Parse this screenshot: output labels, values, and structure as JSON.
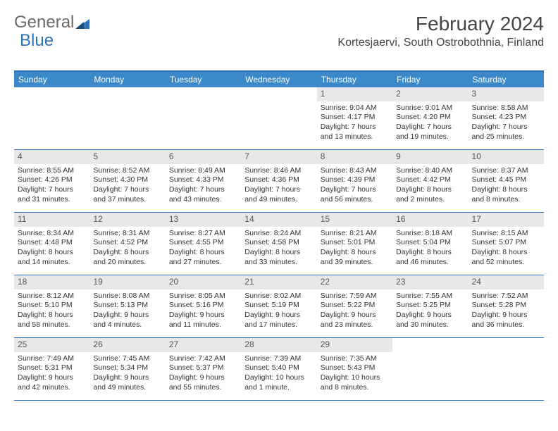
{
  "logo": {
    "text_a": "General",
    "text_b": "Blue"
  },
  "title": "February 2024",
  "location": "Kortesjaervi, South Ostrobothnia, Finland",
  "colors": {
    "header_bg": "#3b89c9",
    "header_text": "#ffffff",
    "border": "#2d72b8",
    "daynum_bg": "#e8e8e8",
    "text": "#333333",
    "logo_gray": "#6a6a6a",
    "logo_blue": "#2d72b8"
  },
  "day_headers": [
    "Sunday",
    "Monday",
    "Tuesday",
    "Wednesday",
    "Thursday",
    "Friday",
    "Saturday"
  ],
  "weeks": [
    [
      {
        "day": "",
        "sunrise": "",
        "sunset": "",
        "daylight": ""
      },
      {
        "day": "",
        "sunrise": "",
        "sunset": "",
        "daylight": ""
      },
      {
        "day": "",
        "sunrise": "",
        "sunset": "",
        "daylight": ""
      },
      {
        "day": "",
        "sunrise": "",
        "sunset": "",
        "daylight": ""
      },
      {
        "day": "1",
        "sunrise": "Sunrise: 9:04 AM",
        "sunset": "Sunset: 4:17 PM",
        "daylight": "Daylight: 7 hours and 13 minutes."
      },
      {
        "day": "2",
        "sunrise": "Sunrise: 9:01 AM",
        "sunset": "Sunset: 4:20 PM",
        "daylight": "Daylight: 7 hours and 19 minutes."
      },
      {
        "day": "3",
        "sunrise": "Sunrise: 8:58 AM",
        "sunset": "Sunset: 4:23 PM",
        "daylight": "Daylight: 7 hours and 25 minutes."
      }
    ],
    [
      {
        "day": "4",
        "sunrise": "Sunrise: 8:55 AM",
        "sunset": "Sunset: 4:26 PM",
        "daylight": "Daylight: 7 hours and 31 minutes."
      },
      {
        "day": "5",
        "sunrise": "Sunrise: 8:52 AM",
        "sunset": "Sunset: 4:30 PM",
        "daylight": "Daylight: 7 hours and 37 minutes."
      },
      {
        "day": "6",
        "sunrise": "Sunrise: 8:49 AM",
        "sunset": "Sunset: 4:33 PM",
        "daylight": "Daylight: 7 hours and 43 minutes."
      },
      {
        "day": "7",
        "sunrise": "Sunrise: 8:46 AM",
        "sunset": "Sunset: 4:36 PM",
        "daylight": "Daylight: 7 hours and 49 minutes."
      },
      {
        "day": "8",
        "sunrise": "Sunrise: 8:43 AM",
        "sunset": "Sunset: 4:39 PM",
        "daylight": "Daylight: 7 hours and 56 minutes."
      },
      {
        "day": "9",
        "sunrise": "Sunrise: 8:40 AM",
        "sunset": "Sunset: 4:42 PM",
        "daylight": "Daylight: 8 hours and 2 minutes."
      },
      {
        "day": "10",
        "sunrise": "Sunrise: 8:37 AM",
        "sunset": "Sunset: 4:45 PM",
        "daylight": "Daylight: 8 hours and 8 minutes."
      }
    ],
    [
      {
        "day": "11",
        "sunrise": "Sunrise: 8:34 AM",
        "sunset": "Sunset: 4:48 PM",
        "daylight": "Daylight: 8 hours and 14 minutes."
      },
      {
        "day": "12",
        "sunrise": "Sunrise: 8:31 AM",
        "sunset": "Sunset: 4:52 PM",
        "daylight": "Daylight: 8 hours and 20 minutes."
      },
      {
        "day": "13",
        "sunrise": "Sunrise: 8:27 AM",
        "sunset": "Sunset: 4:55 PM",
        "daylight": "Daylight: 8 hours and 27 minutes."
      },
      {
        "day": "14",
        "sunrise": "Sunrise: 8:24 AM",
        "sunset": "Sunset: 4:58 PM",
        "daylight": "Daylight: 8 hours and 33 minutes."
      },
      {
        "day": "15",
        "sunrise": "Sunrise: 8:21 AM",
        "sunset": "Sunset: 5:01 PM",
        "daylight": "Daylight: 8 hours and 39 minutes."
      },
      {
        "day": "16",
        "sunrise": "Sunrise: 8:18 AM",
        "sunset": "Sunset: 5:04 PM",
        "daylight": "Daylight: 8 hours and 46 minutes."
      },
      {
        "day": "17",
        "sunrise": "Sunrise: 8:15 AM",
        "sunset": "Sunset: 5:07 PM",
        "daylight": "Daylight: 8 hours and 52 minutes."
      }
    ],
    [
      {
        "day": "18",
        "sunrise": "Sunrise: 8:12 AM",
        "sunset": "Sunset: 5:10 PM",
        "daylight": "Daylight: 8 hours and 58 minutes."
      },
      {
        "day": "19",
        "sunrise": "Sunrise: 8:08 AM",
        "sunset": "Sunset: 5:13 PM",
        "daylight": "Daylight: 9 hours and 4 minutes."
      },
      {
        "day": "20",
        "sunrise": "Sunrise: 8:05 AM",
        "sunset": "Sunset: 5:16 PM",
        "daylight": "Daylight: 9 hours and 11 minutes."
      },
      {
        "day": "21",
        "sunrise": "Sunrise: 8:02 AM",
        "sunset": "Sunset: 5:19 PM",
        "daylight": "Daylight: 9 hours and 17 minutes."
      },
      {
        "day": "22",
        "sunrise": "Sunrise: 7:59 AM",
        "sunset": "Sunset: 5:22 PM",
        "daylight": "Daylight: 9 hours and 23 minutes."
      },
      {
        "day": "23",
        "sunrise": "Sunrise: 7:55 AM",
        "sunset": "Sunset: 5:25 PM",
        "daylight": "Daylight: 9 hours and 30 minutes."
      },
      {
        "day": "24",
        "sunrise": "Sunrise: 7:52 AM",
        "sunset": "Sunset: 5:28 PM",
        "daylight": "Daylight: 9 hours and 36 minutes."
      }
    ],
    [
      {
        "day": "25",
        "sunrise": "Sunrise: 7:49 AM",
        "sunset": "Sunset: 5:31 PM",
        "daylight": "Daylight: 9 hours and 42 minutes."
      },
      {
        "day": "26",
        "sunrise": "Sunrise: 7:45 AM",
        "sunset": "Sunset: 5:34 PM",
        "daylight": "Daylight: 9 hours and 49 minutes."
      },
      {
        "day": "27",
        "sunrise": "Sunrise: 7:42 AM",
        "sunset": "Sunset: 5:37 PM",
        "daylight": "Daylight: 9 hours and 55 minutes."
      },
      {
        "day": "28",
        "sunrise": "Sunrise: 7:39 AM",
        "sunset": "Sunset: 5:40 PM",
        "daylight": "Daylight: 10 hours and 1 minute."
      },
      {
        "day": "29",
        "sunrise": "Sunrise: 7:35 AM",
        "sunset": "Sunset: 5:43 PM",
        "daylight": "Daylight: 10 hours and 8 minutes."
      },
      {
        "day": "",
        "sunrise": "",
        "sunset": "",
        "daylight": ""
      },
      {
        "day": "",
        "sunrise": "",
        "sunset": "",
        "daylight": ""
      }
    ]
  ]
}
